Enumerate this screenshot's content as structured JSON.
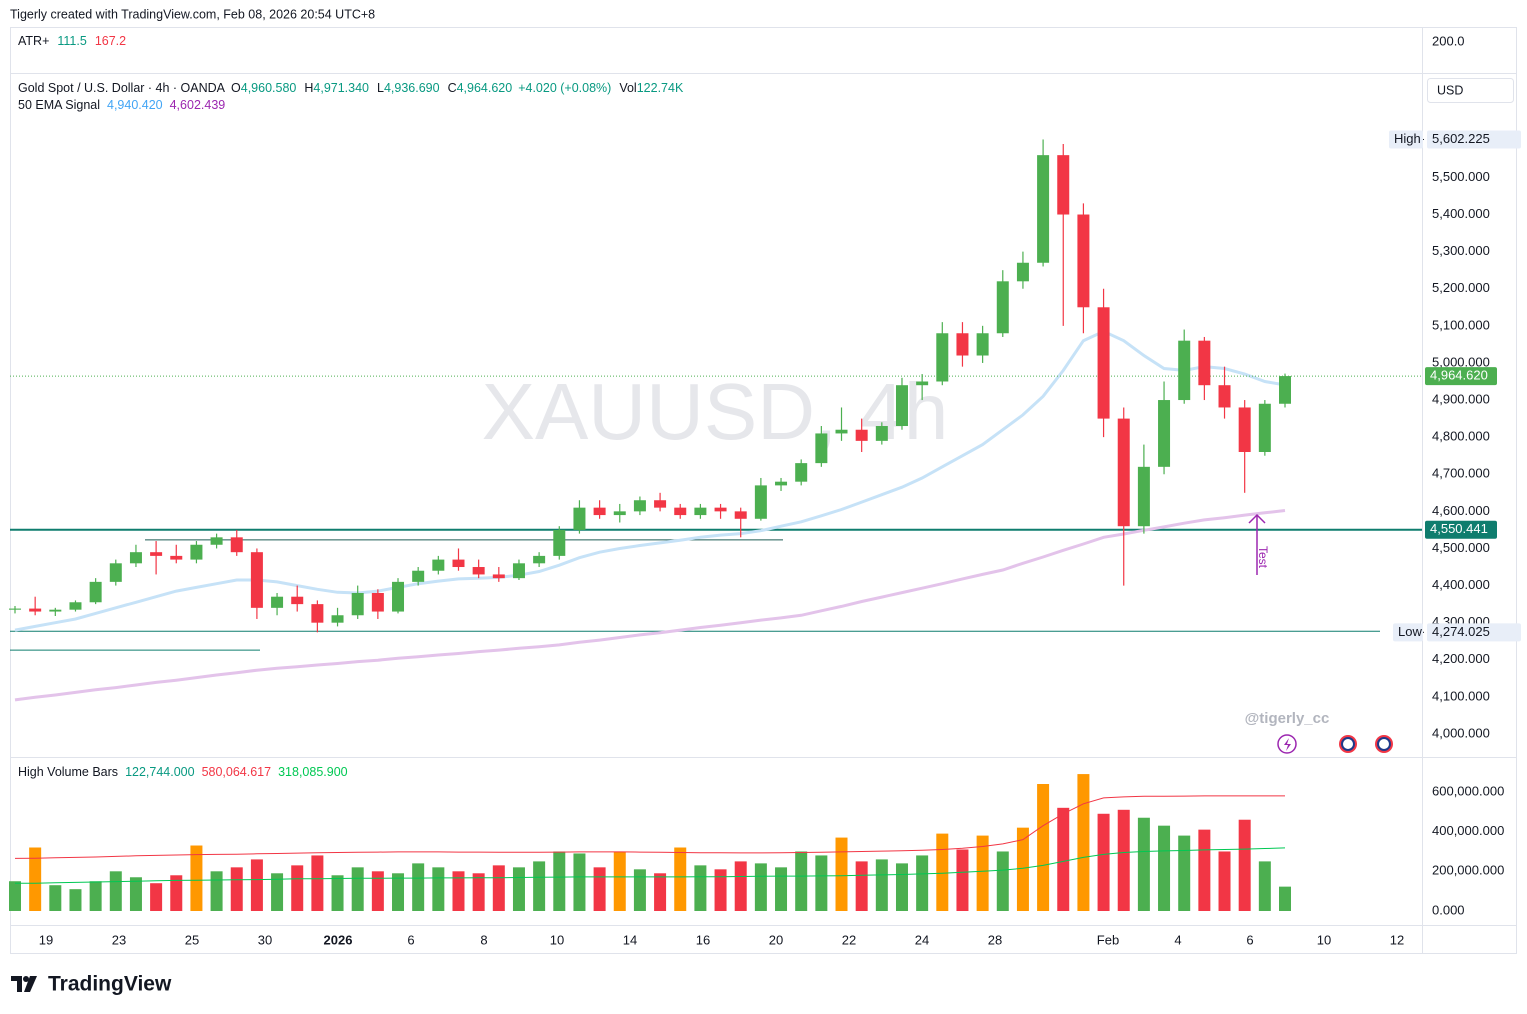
{
  "header": "Tigerly created with TradingView.com, Feb 08, 2026 20:54 UTC+8",
  "atr": {
    "name": "ATR+",
    "values": [
      "111.5",
      "167.2"
    ],
    "axis_label": "200.0"
  },
  "legend": {
    "symbol": "Gold Spot / U.S. Dollar · 4h · OANDA",
    "ohlc": [
      {
        "label": "O",
        "value": "4,960.580"
      },
      {
        "label": "H",
        "value": "4,971.340"
      },
      {
        "label": "L",
        "value": "4,936.690"
      },
      {
        "label": "C",
        "value": "4,964.620"
      }
    ],
    "change": "+4.020 (+0.08%)",
    "volume_label": "Vol",
    "volume": "122.74K"
  },
  "currency": "USD",
  "watermark": "XAUUSD, 4h",
  "signature": "@tigerly_cc",
  "annotation": "Test",
  "footer": "TradingView",
  "chart_data": {
    "type": "candlestick",
    "up_color": "#4caf50",
    "down_color": "#f23645",
    "open": [
      4335,
      4338,
      4330,
      4335,
      4355,
      4410,
      4460,
      4490,
      4480,
      4470,
      4510,
      4530,
      4490,
      4340,
      4370,
      4350,
      4300,
      4320,
      4380,
      4330,
      4410,
      4440,
      4470,
      4450,
      4430,
      4420,
      4460,
      4480,
      4550,
      4610,
      4590,
      4600,
      4630,
      4610,
      4590,
      4610,
      4600,
      4580,
      4670,
      4680,
      4730,
      4810,
      4820,
      4790,
      4830,
      4940,
      4950,
      5080,
      5020,
      5080,
      5220,
      5270,
      5560,
      5400,
      5150,
      4850,
      4560,
      4720,
      4900,
      5060,
      4940,
      4880,
      4760,
      4890
    ],
    "high": [
      4345,
      4370,
      4340,
      4360,
      4420,
      4470,
      4510,
      4520,
      4510,
      4520,
      4540,
      4550,
      4500,
      4380,
      4400,
      4360,
      4340,
      4400,
      4390,
      4420,
      4450,
      4480,
      4500,
      4470,
      4450,
      4470,
      4490,
      4560,
      4630,
      4630,
      4620,
      4640,
      4650,
      4620,
      4620,
      4620,
      4610,
      4690,
      4690,
      4740,
      4830,
      4880,
      4850,
      4840,
      4960,
      4970,
      5110,
      5110,
      5100,
      5250,
      5300,
      5602.225,
      5590,
      5430,
      5200,
      4880,
      4780,
      4950,
      5090,
      5070,
      4990,
      4900,
      4900,
      4971.34
    ],
    "low": [
      4325,
      4320,
      4318,
      4330,
      4350,
      4400,
      4450,
      4430,
      4460,
      4460,
      4500,
      4480,
      4310,
      4320,
      4330,
      4274.025,
      4290,
      4310,
      4310,
      4325,
      4400,
      4430,
      4440,
      4420,
      4410,
      4415,
      4450,
      4470,
      4540,
      4580,
      4570,
      4590,
      4600,
      4580,
      4580,
      4580,
      4530,
      4575,
      4655,
      4670,
      4720,
      4790,
      4760,
      4780,
      4820,
      4900,
      4940,
      4990,
      5000,
      5070,
      5200,
      5260,
      5100,
      5080,
      4800,
      4400,
      4540,
      4700,
      4890,
      4900,
      4850,
      4650,
      4750,
      4880
    ],
    "close": [
      4338,
      4330,
      4335,
      4355,
      4410,
      4460,
      4490,
      4480,
      4470,
      4510,
      4530,
      4490,
      4340,
      4370,
      4350,
      4300,
      4320,
      4380,
      4330,
      4410,
      4440,
      4470,
      4450,
      4430,
      4420,
      4460,
      4480,
      4550,
      4610,
      4590,
      4600,
      4630,
      4610,
      4590,
      4610,
      4600,
      4580,
      4670,
      4680,
      4730,
      4810,
      4820,
      4790,
      4830,
      4940,
      4950,
      5080,
      5020,
      5080,
      5220,
      5270,
      5560,
      5400,
      5150,
      4850,
      4560,
      4720,
      4900,
      5060,
      4940,
      4880,
      4760,
      4890,
      4964.62
    ],
    "ylim": [
      3938,
      5776
    ],
    "yticks": [
      {
        "value": 4000,
        "label": "4,000.000"
      },
      {
        "value": 4100,
        "label": "4,100.000"
      },
      {
        "value": 4200,
        "label": "4,200.000"
      },
      {
        "value": 4300,
        "label": "4,300.000"
      },
      {
        "value": 4400,
        "label": "4,400.000"
      },
      {
        "value": 4500,
        "label": "4,500.000"
      },
      {
        "value": 4600,
        "label": "4,600.000"
      },
      {
        "value": 4700,
        "label": "4,700.000"
      },
      {
        "value": 4800,
        "label": "4,800.000"
      },
      {
        "value": 4900,
        "label": "4,900.000"
      },
      {
        "value": 5000,
        "label": "5,000.000"
      },
      {
        "value": 5100,
        "label": "5,100.000"
      },
      {
        "value": 5200,
        "label": "5,200.000"
      },
      {
        "value": 5300,
        "label": "5,300.000"
      },
      {
        "value": 5400,
        "label": "5,400.000"
      },
      {
        "value": 5500,
        "label": "5,500.000"
      }
    ],
    "xticks": [
      "19",
      "23",
      "25",
      "30",
      "2026",
      "6",
      "8",
      "10",
      "14",
      "16",
      "20",
      "22",
      "24",
      "28",
      "Feb",
      "4",
      "6",
      "10",
      "12"
    ],
    "high_marker": {
      "label": "High",
      "value": 5602.225,
      "value_label": "5,602.225"
    },
    "low_marker": {
      "label": "Low",
      "value": 4274.025,
      "value_label": "4,274.025"
    },
    "last_price": {
      "value": 4964.62,
      "value_label": "4,964.620",
      "color": "#4caf50"
    },
    "level": {
      "value": 4550.441,
      "value_label": "4,550.441",
      "color": "#0f7d6e"
    },
    "drawn_lines": [
      4523,
      4226,
      4277
    ],
    "indicator": {
      "name": "50 EMA Signal",
      "lines": [
        {
          "value_label": "4,940.420",
          "color": "#42a5f5",
          "line_color": "#c6e2f7",
          "values": [
            4280,
            4290,
            4300,
            4310,
            4325,
            4340,
            4355,
            4370,
            4385,
            4395,
            4405,
            4415,
            4415,
            4410,
            4400,
            4390,
            4382,
            4380,
            4385,
            4395,
            4405,
            4412,
            4418,
            4420,
            4422,
            4428,
            4438,
            4455,
            4475,
            4490,
            4500,
            4508,
            4515,
            4522,
            4530,
            4536,
            4540,
            4548,
            4560,
            4572,
            4588,
            4605,
            4625,
            4645,
            4665,
            4690,
            4720,
            4750,
            4780,
            4820,
            4860,
            4910,
            4980,
            5060,
            5085,
            5060,
            5020,
            4985,
            4980,
            4990,
            4985,
            4970,
            4950,
            4940.42
          ]
        },
        {
          "value_label": "4,602.439",
          "color": "#9c27b0",
          "line_color": "#e3c3ea",
          "values": [
            4092,
            4099,
            4105,
            4112,
            4119,
            4125,
            4132,
            4139,
            4145,
            4152,
            4159,
            4165,
            4172,
            4177,
            4181,
            4186,
            4190,
            4195,
            4199,
            4204,
            4208,
            4213,
            4217,
            4222,
            4226,
            4231,
            4235,
            4240,
            4247,
            4253,
            4260,
            4267,
            4273,
            4280,
            4287,
            4293,
            4300,
            4307,
            4313,
            4320,
            4332,
            4344,
            4357,
            4369,
            4381,
            4393,
            4405,
            4418,
            4430,
            4442,
            4460,
            4477,
            4495,
            4512,
            4530,
            4539,
            4549,
            4558,
            4568,
            4577,
            4583,
            4590,
            4596,
            4602.439
          ]
        }
      ]
    },
    "volume": {
      "name": "High Volume Bars",
      "value_label": "122,744.000",
      "label_color": "#089981",
      "values": [
        150000,
        320000,
        130000,
        110000,
        150000,
        200000,
        170000,
        140000,
        180000,
        330000,
        200000,
        220000,
        260000,
        190000,
        230000,
        280000,
        180000,
        220000,
        200000,
        190000,
        240000,
        220000,
        200000,
        190000,
        230000,
        220000,
        250000,
        300000,
        290000,
        220000,
        300000,
        210000,
        190000,
        320000,
        230000,
        210000,
        250000,
        240000,
        220000,
        300000,
        280000,
        370000,
        250000,
        260000,
        240000,
        280000,
        390000,
        310000,
        380000,
        300000,
        420000,
        640000,
        520000,
        690000,
        490000,
        510000,
        470000,
        430000,
        380000,
        410000,
        300000,
        460000,
        250000,
        122744
      ],
      "colors": [
        "#4caf50",
        "#ff9800",
        "#4caf50",
        "#4caf50",
        "#4caf50",
        "#4caf50",
        "#4caf50",
        "#f23645",
        "#f23645",
        "#ff9800",
        "#4caf50",
        "#f23645",
        "#f23645",
        "#4caf50",
        "#f23645",
        "#f23645",
        "#4caf50",
        "#4caf50",
        "#f23645",
        "#4caf50",
        "#4caf50",
        "#4caf50",
        "#f23645",
        "#f23645",
        "#f23645",
        "#4caf50",
        "#4caf50",
        "#4caf50",
        "#4caf50",
        "#f23645",
        "#ff9800",
        "#4caf50",
        "#f23645",
        "#ff9800",
        "#4caf50",
        "#f23645",
        "#f23645",
        "#4caf50",
        "#4caf50",
        "#4caf50",
        "#4caf50",
        "#ff9800",
        "#f23645",
        "#4caf50",
        "#4caf50",
        "#4caf50",
        "#ff9800",
        "#f23645",
        "#ff9800",
        "#4caf50",
        "#ff9800",
        "#ff9800",
        "#f23645",
        "#ff9800",
        "#f23645",
        "#f23645",
        "#4caf50",
        "#4caf50",
        "#4caf50",
        "#f23645",
        "#f23645",
        "#f23645",
        "#4caf50",
        "#4caf50"
      ],
      "ylim": [
        -70600,
        761000
      ],
      "yticks": [
        {
          "value": 0,
          "label": "0.000"
        },
        {
          "value": 200000,
          "label": "200,000.000"
        },
        {
          "value": 400000,
          "label": "400,000.000"
        },
        {
          "value": 600000,
          "label": "600,000.000"
        }
      ],
      "lines": [
        {
          "value_label": "580,064.617",
          "color": "#f23645",
          "values": [
            265000,
            266000,
            268000,
            270000,
            272000,
            275000,
            278000,
            280000,
            282000,
            284000,
            285000,
            286000,
            288000,
            290000,
            292000,
            294000,
            295000,
            296000,
            297000,
            298000,
            298000,
            298000,
            297000,
            297000,
            296000,
            296000,
            296000,
            297000,
            298000,
            298000,
            298000,
            297000,
            296000,
            295000,
            294000,
            294000,
            293000,
            293000,
            294000,
            295000,
            296000,
            298000,
            300000,
            302000,
            304000,
            306000,
            310000,
            316000,
            325000,
            338000,
            360000,
            430000,
            490000,
            540000,
            570000,
            575000,
            578000,
            578000,
            579000,
            580000,
            580000,
            580000,
            580000,
            580064.617
          ]
        },
        {
          "value_label": "318,085.900",
          "color": "#00c853",
          "values": [
            140000,
            140000,
            142000,
            144000,
            146000,
            148000,
            150000,
            152000,
            154000,
            155000,
            156000,
            157000,
            158000,
            160000,
            162000,
            163000,
            164000,
            165000,
            165000,
            166000,
            166000,
            167000,
            167000,
            168000,
            168000,
            169000,
            170000,
            171000,
            172000,
            172000,
            172000,
            172000,
            172000,
            172000,
            173000,
            173000,
            174000,
            175000,
            176000,
            176000,
            177000,
            178000,
            180000,
            182000,
            184000,
            187000,
            190000,
            195000,
            200000,
            206000,
            215000,
            230000,
            250000,
            270000,
            285000,
            295000,
            300000,
            303000,
            305000,
            308000,
            310000,
            312000,
            315000,
            318085.9
          ]
        }
      ]
    }
  }
}
